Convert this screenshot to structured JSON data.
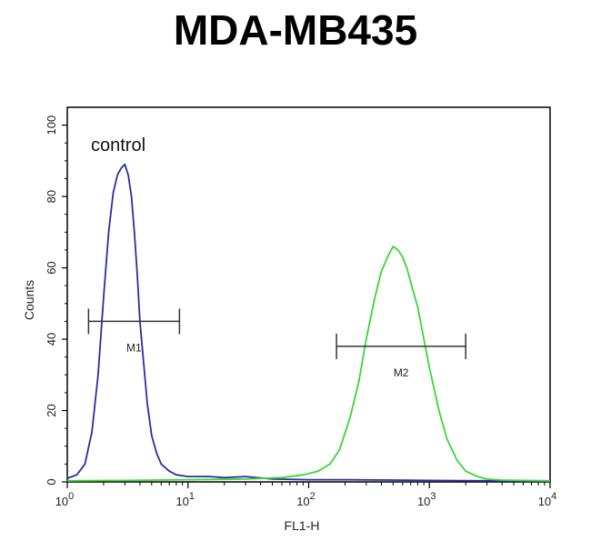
{
  "title": "MDA-MB435",
  "chart_data": {
    "type": "line",
    "xlabel": "FL1-H",
    "ylabel": "Counts",
    "xscale": "log",
    "xlim": [
      1,
      10000
    ],
    "ylim": [
      0,
      105
    ],
    "y_ticks": [
      0,
      20,
      40,
      60,
      80,
      100
    ],
    "x_ticks": [
      {
        "base": "10",
        "exp": "0"
      },
      {
        "base": "10",
        "exp": "1"
      },
      {
        "base": "10",
        "exp": "2"
      },
      {
        "base": "10",
        "exp": "3"
      },
      {
        "base": "10",
        "exp": "4"
      }
    ],
    "annotation": "control",
    "series": [
      {
        "color": "#2a2ea0",
        "x": [
          1.0,
          1.2,
          1.4,
          1.6,
          1.8,
          2.0,
          2.2,
          2.4,
          2.6,
          2.8,
          3.0,
          3.2,
          3.4,
          3.6,
          3.8,
          4.0,
          4.3,
          4.6,
          5.0,
          5.5,
          6.0,
          7.0,
          8.0,
          10,
          15,
          20,
          30,
          50,
          100,
          200,
          500,
          1000,
          3000,
          10000
        ],
        "y": [
          1,
          2,
          5,
          14,
          30,
          52,
          70,
          81,
          86,
          88,
          89,
          86,
          80,
          70,
          58,
          45,
          33,
          22,
          13,
          8,
          5,
          3,
          2,
          1.5,
          1.5,
          1.2,
          1.5,
          0.8,
          0.6,
          0.6,
          0.5,
          0.4,
          0.3,
          0.2
        ]
      },
      {
        "color": "#39d639",
        "x": [
          1.0,
          3,
          10,
          30,
          60,
          90,
          120,
          150,
          180,
          220,
          260,
          300,
          350,
          400,
          450,
          500,
          550,
          600,
          650,
          700,
          800,
          900,
          1000,
          1200,
          1400,
          1700,
          2000,
          2500,
          3000,
          4000,
          10000
        ],
        "y": [
          0.3,
          0.4,
          0.6,
          0.8,
          1.2,
          2,
          3,
          5,
          9,
          18,
          28,
          40,
          51,
          59,
          63,
          66,
          65,
          63,
          60,
          56,
          49,
          40,
          32,
          20,
          12,
          6,
          3,
          1.5,
          0.8,
          0.5,
          0.3
        ]
      }
    ],
    "markers": [
      {
        "label": "M1",
        "x_start": 1.5,
        "x_end": 8.5,
        "y": 45
      },
      {
        "label": "M2",
        "x_start": 170,
        "x_end": 2000,
        "y": 38
      }
    ]
  }
}
